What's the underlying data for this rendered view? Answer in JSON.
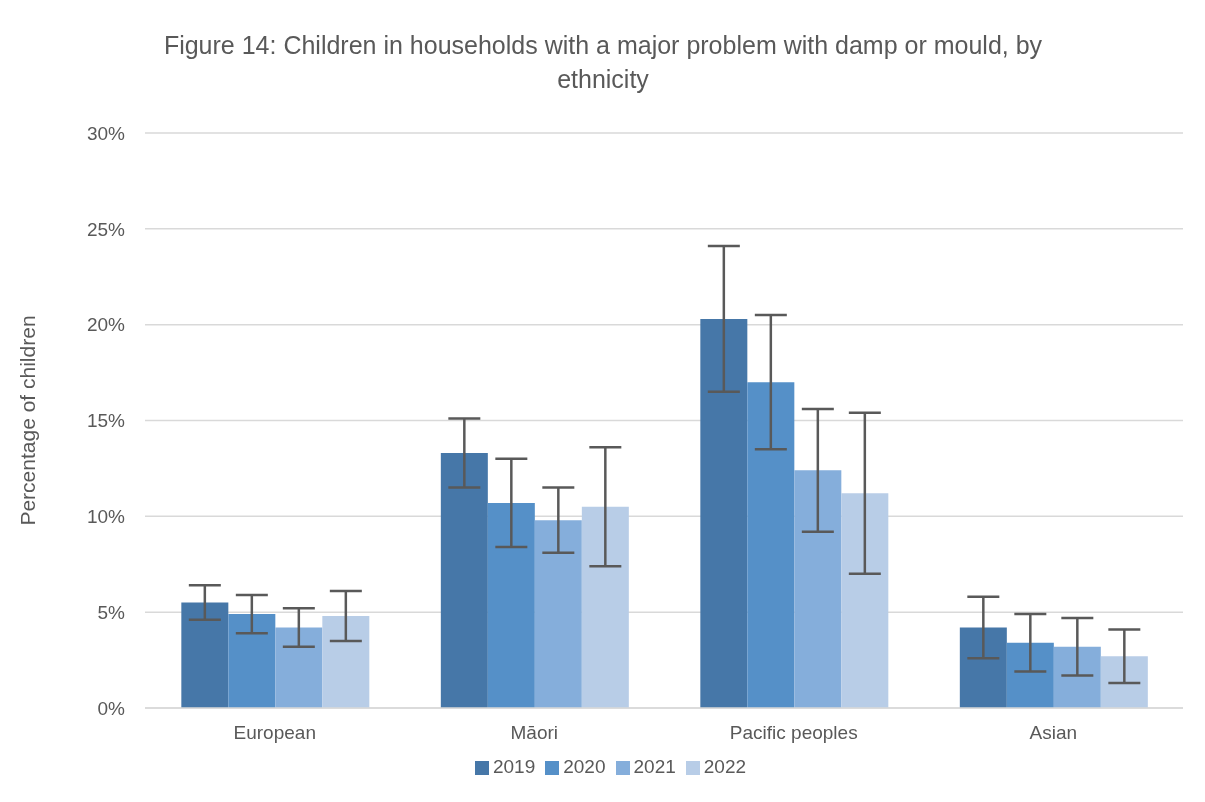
{
  "chart_data": {
    "type": "bar",
    "title": "Figure 14: Children in households with a major problem with damp or mould, by ethnicity",
    "ylabel": "Percentage of children",
    "categories": [
      "European",
      "Māori",
      "Pacific peoples",
      "Asian"
    ],
    "series": [
      {
        "name": "2019",
        "color": "#4677a8",
        "values": [
          5.5,
          13.3,
          20.3,
          4.2
        ],
        "errors": [
          [
            4.6,
            6.4
          ],
          [
            11.5,
            15.1
          ],
          [
            16.5,
            24.1
          ],
          [
            2.6,
            5.8
          ]
        ]
      },
      {
        "name": "2020",
        "color": "#5590c8",
        "values": [
          4.9,
          10.7,
          17.0,
          3.4
        ],
        "errors": [
          [
            3.9,
            5.9
          ],
          [
            8.4,
            13.0
          ],
          [
            13.5,
            20.5
          ],
          [
            1.9,
            4.9
          ]
        ]
      },
      {
        "name": "2021",
        "color": "#85aedb",
        "values": [
          4.2,
          9.8,
          12.4,
          3.2
        ],
        "errors": [
          [
            3.2,
            5.2
          ],
          [
            8.1,
            11.5
          ],
          [
            9.2,
            15.6
          ],
          [
            1.7,
            4.7
          ]
        ]
      },
      {
        "name": "2022",
        "color": "#b8cde7",
        "values": [
          4.8,
          10.5,
          11.2,
          2.7
        ],
        "errors": [
          [
            3.5,
            6.1
          ],
          [
            7.4,
            13.6
          ],
          [
            7.0,
            15.4
          ],
          [
            1.3,
            4.1
          ]
        ]
      }
    ],
    "ylim": [
      0,
      30
    ],
    "yticks": [
      {
        "value": 0,
        "label": "0%"
      },
      {
        "value": 5,
        "label": "5%"
      },
      {
        "value": 10,
        "label": "10%"
      },
      {
        "value": 15,
        "label": "15%"
      },
      {
        "value": 20,
        "label": "20%"
      },
      {
        "value": 25,
        "label": "25%"
      },
      {
        "value": 30,
        "label": "30%"
      }
    ],
    "grid": "y",
    "legend": "bottom"
  }
}
